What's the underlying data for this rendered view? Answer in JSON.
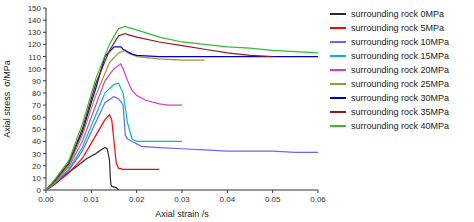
{
  "chart_data": {
    "type": "line",
    "xlabel": "Axial strain /s",
    "ylabel": "Axial stress  σ/MPa",
    "xlim": [
      0,
      0.06
    ],
    "ylim": [
      0,
      150
    ],
    "xticks": [
      {
        "value": 0,
        "label": "0.00"
      },
      0.01,
      0.02,
      0.03,
      0.04,
      0.05,
      0.06
    ],
    "yticks": [
      0,
      10,
      20,
      30,
      40,
      50,
      60,
      70,
      80,
      90,
      100,
      110,
      120,
      130,
      140,
      150
    ],
    "grid": false,
    "legend": "right",
    "series": [
      {
        "name": "surrounding rock 0MPa",
        "color": "#2b2b2b",
        "x": [
          0,
          0.002,
          0.004,
          0.007,
          0.009,
          0.011,
          0.0125,
          0.013,
          0.0135,
          0.014,
          0.0142,
          0.0143,
          0.0145,
          0.0155,
          0.016
        ],
        "values": [
          0,
          5,
          12,
          20,
          26,
          30,
          34,
          35,
          34,
          25,
          10,
          5,
          3,
          2,
          0
        ]
      },
      {
        "name": "surrounding rock 5MPa",
        "color": "#ff0000",
        "x": [
          0,
          0.002,
          0.005,
          0.008,
          0.011,
          0.013,
          0.014,
          0.0145,
          0.015,
          0.0155,
          0.016,
          0.017,
          0.018,
          0.019,
          0.02,
          0.025
        ],
        "values": [
          0,
          5,
          14,
          26,
          45,
          58,
          62,
          58,
          40,
          22,
          18,
          17,
          17,
          17,
          17,
          17
        ]
      },
      {
        "name": "surrounding rock 10MPa",
        "color": "#6666ff",
        "x": [
          0,
          0.002,
          0.005,
          0.008,
          0.011,
          0.013,
          0.015,
          0.016,
          0.0165,
          0.017,
          0.0175,
          0.018,
          0.019,
          0.02,
          0.021,
          0.025,
          0.03,
          0.035,
          0.04,
          0.045,
          0.05,
          0.055,
          0.06
        ],
        "values": [
          0,
          6,
          16,
          32,
          56,
          72,
          77,
          75,
          73,
          70,
          45,
          42,
          40,
          38,
          36,
          35,
          34,
          33,
          32,
          32,
          32,
          31,
          31
        ]
      },
      {
        "name": "surrounding rock 15MPa",
        "color": "#00bbbb",
        "x": [
          0,
          0.002,
          0.005,
          0.008,
          0.011,
          0.013,
          0.015,
          0.016,
          0.017,
          0.018,
          0.019,
          0.02,
          0.022,
          0.025,
          0.028,
          0.03
        ],
        "values": [
          0,
          6,
          17,
          35,
          62,
          80,
          87,
          88,
          80,
          55,
          42,
          40,
          40,
          40,
          40,
          40
        ]
      },
      {
        "name": "surrounding rock 20MPa",
        "color": "#cc44cc",
        "x": [
          0,
          0.002,
          0.005,
          0.008,
          0.011,
          0.013,
          0.015,
          0.0165,
          0.017,
          0.018,
          0.019,
          0.02,
          0.022,
          0.025,
          0.027,
          0.03
        ],
        "values": [
          0,
          7,
          19,
          40,
          70,
          90,
          100,
          104,
          100,
          90,
          82,
          78,
          74,
          71,
          70,
          70
        ]
      },
      {
        "name": "surrounding rock 25MPa",
        "color": "#999933",
        "x": [
          0,
          0.002,
          0.005,
          0.008,
          0.011,
          0.014,
          0.016,
          0.0175,
          0.018,
          0.02,
          0.025,
          0.03,
          0.035
        ],
        "values": [
          0,
          7,
          20,
          45,
          78,
          105,
          113,
          115,
          113,
          110,
          108,
          107,
          107
        ]
      },
      {
        "name": "surrounding rock 30MPa",
        "color": "#0000cc",
        "x": [
          0,
          0.002,
          0.005,
          0.008,
          0.011,
          0.013,
          0.015,
          0.0165,
          0.017,
          0.018,
          0.019,
          0.02,
          0.025,
          0.03,
          0.04,
          0.05,
          0.06
        ],
        "values": [
          0,
          8,
          22,
          48,
          84,
          110,
          118,
          118,
          116,
          114,
          112,
          111,
          110,
          110,
          110,
          110,
          110
        ]
      },
      {
        "name": "surrounding rock 35MPa",
        "color": "#8b1a1a",
        "x": [
          0,
          0.002,
          0.005,
          0.008,
          0.011,
          0.014,
          0.016,
          0.0175,
          0.018,
          0.02,
          0.025,
          0.03,
          0.035,
          0.04,
          0.045,
          0.05
        ],
        "values": [
          0,
          8,
          22,
          50,
          88,
          115,
          127,
          129,
          128,
          126,
          122,
          119,
          116,
          113,
          111,
          110
        ]
      },
      {
        "name": "surrounding rock 40MPa",
        "color": "#33bb33",
        "x": [
          0,
          0.002,
          0.005,
          0.008,
          0.011,
          0.014,
          0.016,
          0.0175,
          0.018,
          0.02,
          0.025,
          0.03,
          0.035,
          0.04,
          0.045,
          0.05,
          0.055,
          0.06
        ],
        "values": [
          0,
          9,
          24,
          54,
          92,
          120,
          133,
          135,
          134,
          132,
          126,
          122,
          120,
          118,
          117,
          115,
          114,
          113
        ]
      }
    ]
  }
}
